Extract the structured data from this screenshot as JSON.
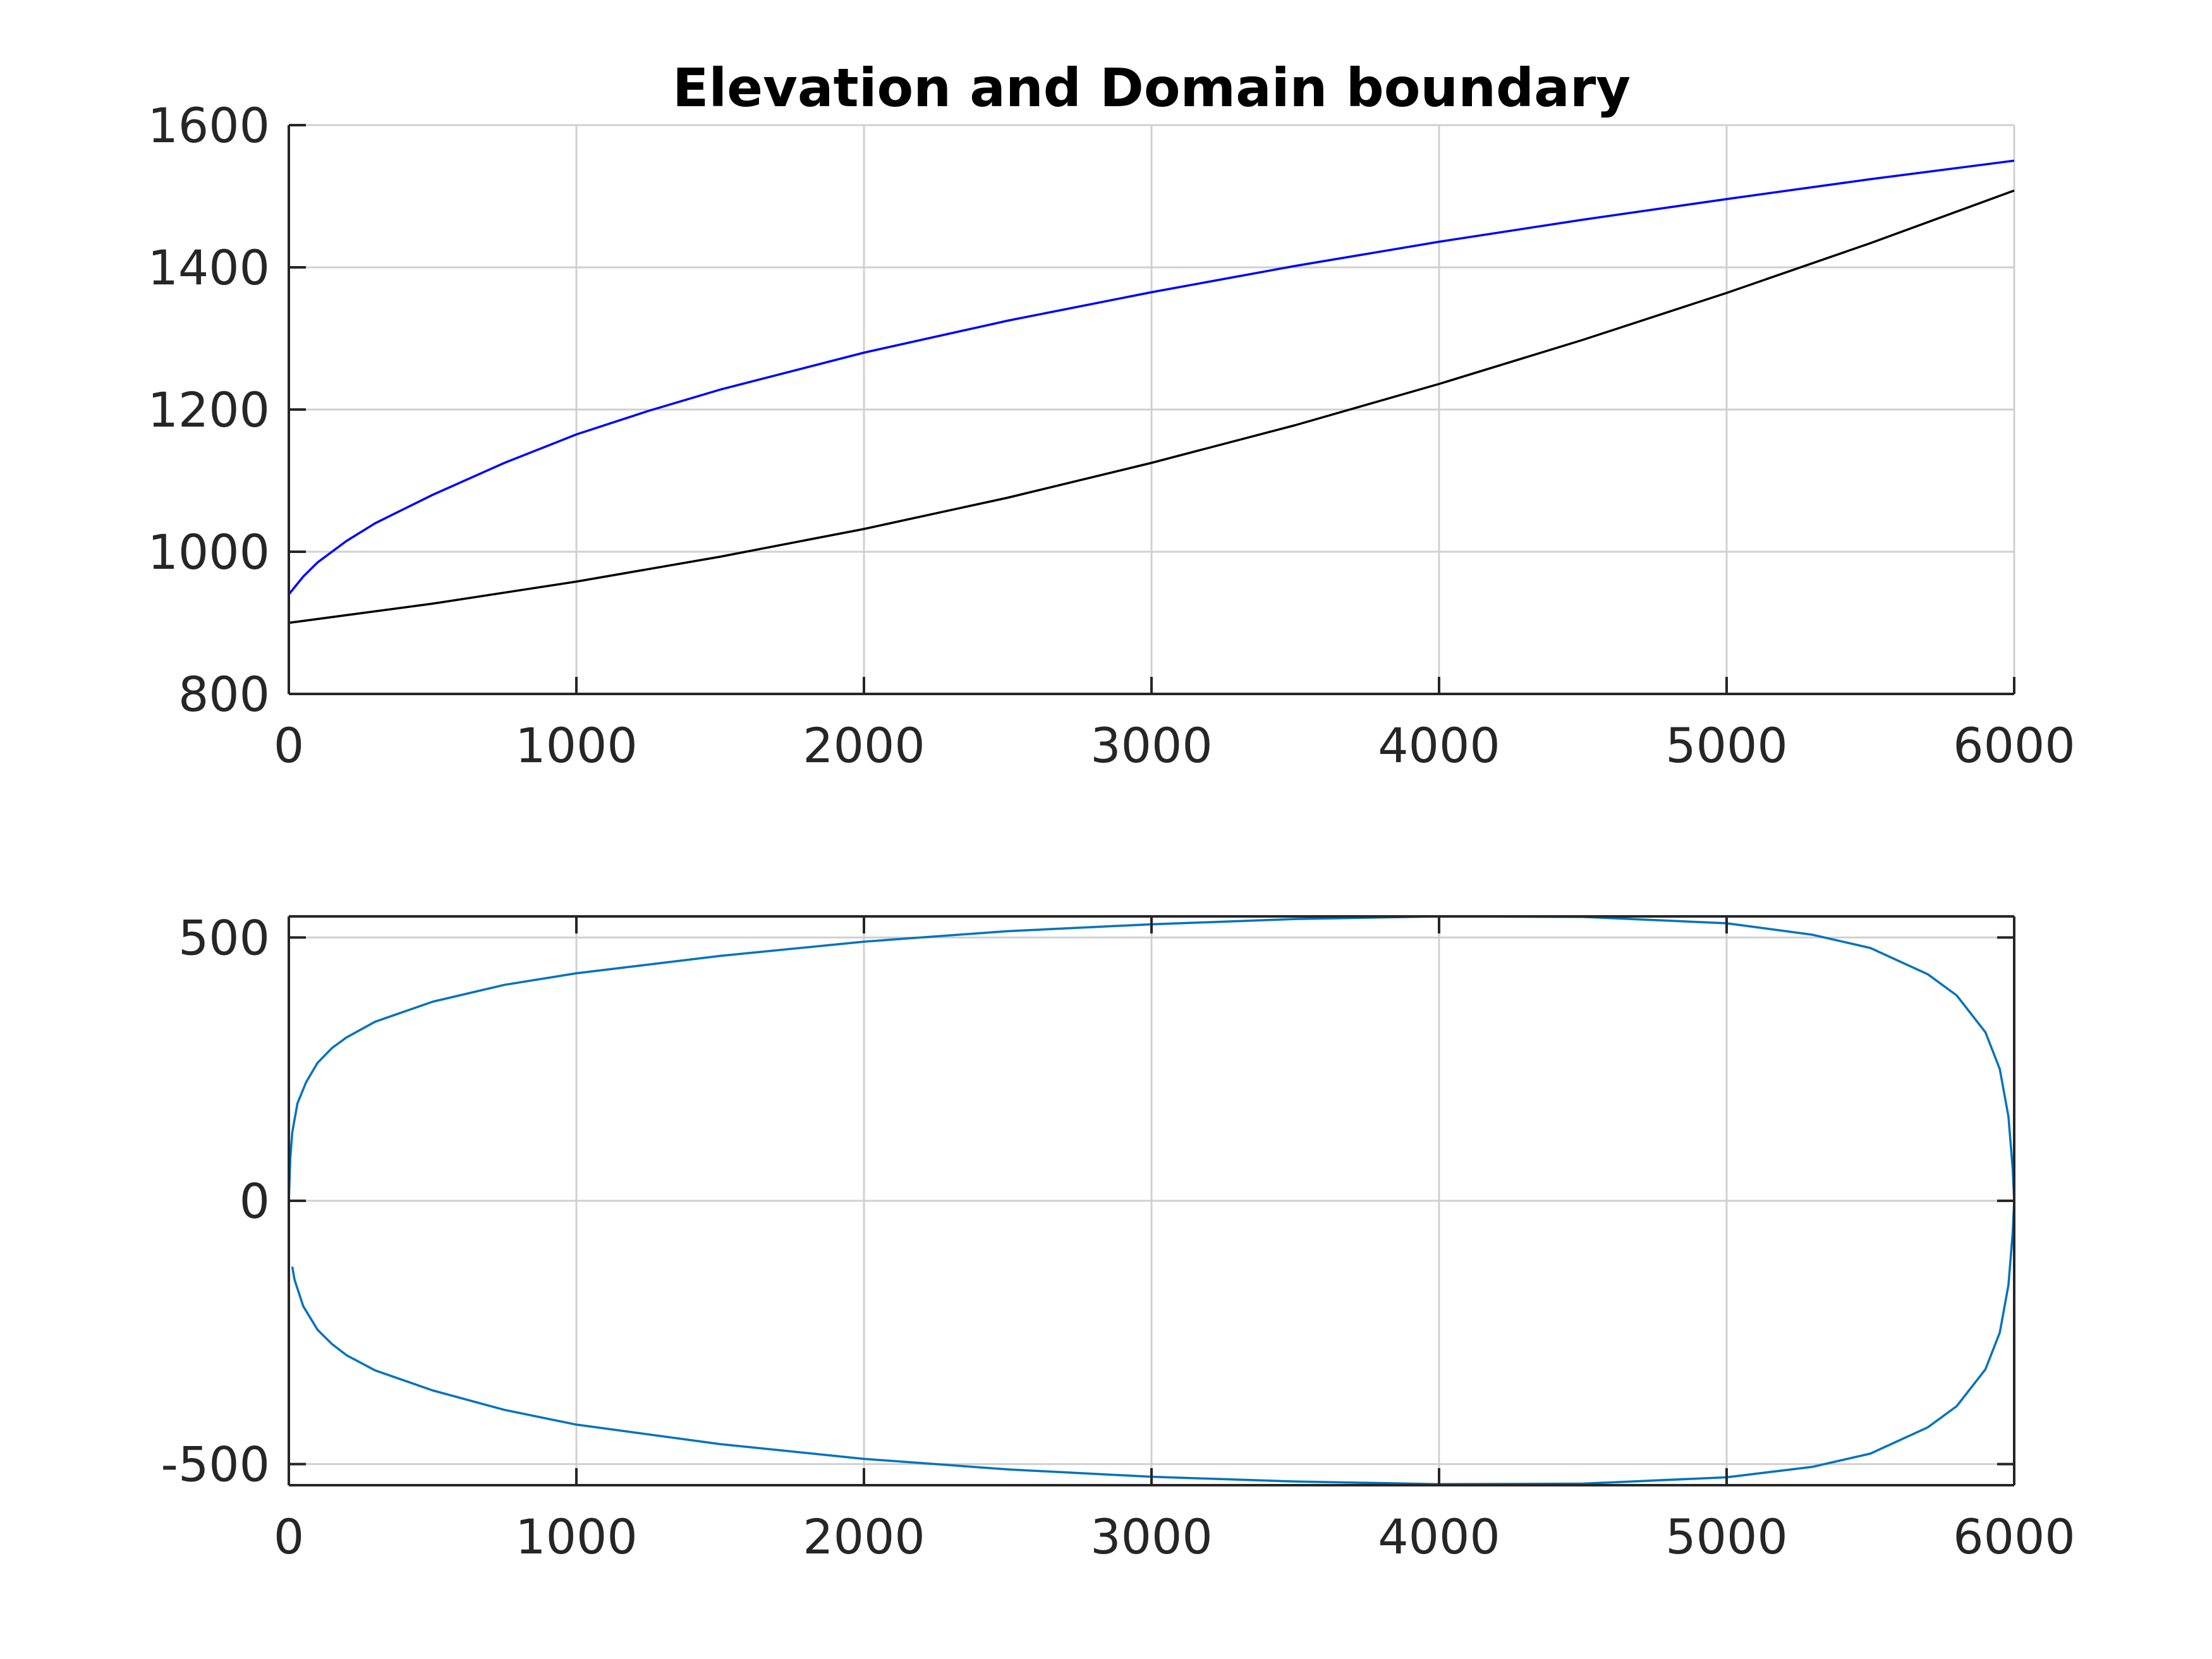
{
  "chart_data": [
    {
      "type": "line",
      "title": "Elevation and Domain boundary",
      "xlabel": "",
      "ylabel": "",
      "xlim": [
        0,
        6000
      ],
      "ylim": [
        800,
        1600
      ],
      "xticks": [
        "0",
        "1000",
        "2000",
        "3000",
        "4000",
        "5000",
        "6000"
      ],
      "yticks": [
        "800",
        "1000",
        "1200",
        "1400",
        "1600"
      ],
      "grid": true,
      "box": false,
      "series": [
        {
          "color": "#0000ff",
          "x": [
            0,
            50,
            100,
            200,
            300,
            500,
            750,
            1000,
            1250,
            1500,
            2000,
            2500,
            3000,
            3500,
            4000,
            4500,
            5000,
            5500,
            6000
          ],
          "y": [
            940,
            965,
            985,
            1015,
            1040,
            1080,
            1125,
            1165,
            1198,
            1228,
            1280,
            1325,
            1365,
            1402,
            1436,
            1467,
            1496,
            1524,
            1550
          ]
        },
        {
          "color": "#000000",
          "x": [
            0,
            500,
            1000,
            1500,
            2000,
            2500,
            3000,
            3500,
            4000,
            4500,
            5000,
            5500,
            6000
          ],
          "y": [
            900,
            927,
            958,
            993,
            1032,
            1076,
            1125,
            1178,
            1236,
            1298,
            1364,
            1434,
            1508
          ]
        }
      ]
    },
    {
      "type": "line",
      "title": "",
      "xlabel": "",
      "ylabel": "",
      "xlim": [
        0,
        6000
      ],
      "ylim": [
        -540,
        540
      ],
      "xticks": [
        "0",
        "1000",
        "2000",
        "3000",
        "4000",
        "5000",
        "6000"
      ],
      "yticks": [
        "-500",
        "0",
        "500"
      ],
      "ytick_values": [
        -500,
        0,
        500
      ],
      "grid": true,
      "box": true,
      "series": [
        {
          "color": "#0072bd",
          "x": [
            12,
            20,
            50,
            100,
            150,
            200,
            300,
            500,
            750,
            1000,
            1500,
            2000,
            2500,
            3000,
            3500,
            4000,
            4500,
            5000,
            5300,
            5500,
            5700,
            5800,
            5900,
            5950,
            5980,
            5995,
            6000
          ],
          "y": [
            -125,
            -150,
            -200,
            -245,
            -272,
            -293,
            -322,
            -360,
            -397,
            -425,
            -462,
            -490,
            -510,
            -524,
            -533,
            -538,
            -537,
            -525,
            -505,
            -480,
            -430,
            -390,
            -320,
            -250,
            -160,
            -60,
            0
          ]
        },
        {
          "color": "#0072bd",
          "x": [
            0,
            5,
            12,
            30,
            60,
            100,
            150,
            200,
            300,
            500,
            750,
            1000,
            1500,
            2000,
            2500,
            3000,
            3500,
            4000,
            4500,
            5000,
            5300,
            5500,
            5700,
            5800,
            5900,
            5950,
            5980,
            5995,
            6000
          ],
          "y": [
            0,
            80,
            130,
            185,
            225,
            262,
            290,
            310,
            340,
            378,
            410,
            432,
            465,
            492,
            512,
            525,
            535,
            540,
            539,
            527,
            505,
            480,
            430,
            390,
            320,
            250,
            160,
            60,
            0
          ]
        }
      ]
    }
  ]
}
